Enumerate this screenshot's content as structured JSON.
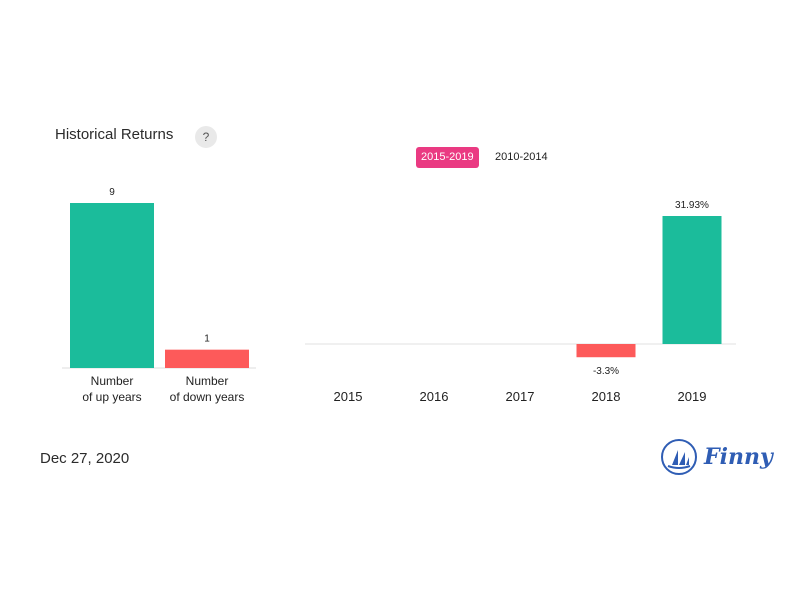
{
  "header": {
    "title": "Historical Returns",
    "help_label": "?"
  },
  "period_toggle": {
    "active": "2015-2019",
    "inactive": "2010-2014"
  },
  "colors": {
    "positive": "#1bbc9b",
    "negative": "#fd5a5a",
    "accent": "#ea3a82",
    "brand": "#2f5db4"
  },
  "chart_data": [
    {
      "type": "bar",
      "categories": [
        [
          "Number",
          "of up years"
        ],
        [
          "Number",
          "of down years"
        ]
      ],
      "values": [
        9,
        1
      ],
      "value_labels": [
        "9",
        "1"
      ],
      "ylim": [
        0,
        9
      ],
      "colors": [
        "#1bbc9b",
        "#fd5a5a"
      ]
    },
    {
      "type": "bar",
      "categories": [
        "2015",
        "2016",
        "2017",
        "2018",
        "2019"
      ],
      "values": [
        null,
        null,
        null,
        -3.3,
        31.93
      ],
      "value_labels": [
        "",
        "",
        "",
        "-3.3%",
        "31.93%"
      ],
      "ylim": [
        -5,
        35
      ],
      "unit": "%"
    }
  ],
  "footer": {
    "date": "Dec 27, 2020",
    "logo_text": "Finny",
    "logo_icon": "sailboat-icon"
  }
}
